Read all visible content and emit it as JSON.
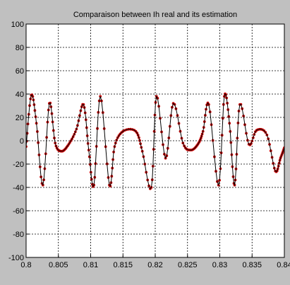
{
  "figure": {
    "background": "#c0c0c0",
    "plot_background": "#ffffff"
  },
  "chart_data": {
    "type": "line",
    "title": "Comparaison between Ih real and its estimation",
    "xlabel": "",
    "ylabel": "",
    "xlim": [
      0.8,
      0.84
    ],
    "ylim": [
      -100,
      100
    ],
    "grid": true,
    "legend": "none",
    "x_ticks": [
      "0.8",
      "0.805",
      "0.81",
      "0.815",
      "0.82",
      "0.825",
      "0.83",
      "0.835",
      "0.84"
    ],
    "y_ticks": [
      "100",
      "80",
      "60",
      "40",
      "20",
      "0",
      "-20",
      "-40",
      "-60",
      "-80",
      "-100"
    ],
    "series": [
      {
        "role": "real",
        "color": "#000000",
        "marker": "none",
        "x": [
          0.8,
          0.8008,
          0.8016,
          0.8026,
          0.8036,
          0.8045,
          0.8055,
          0.8066,
          0.8078,
          0.8089,
          0.8097,
          0.8105,
          0.8115,
          0.8129,
          0.8137,
          0.815,
          0.817,
          0.818,
          0.8194,
          0.8202,
          0.8216,
          0.8228,
          0.8243,
          0.8255,
          0.8266,
          0.8274,
          0.8283,
          0.8298,
          0.8307,
          0.8315,
          0.8323,
          0.8331,
          0.8345,
          0.8357,
          0.8373,
          0.8386,
          0.8394,
          0.84
        ],
        "y": [
          -5,
          39,
          15,
          -38,
          32,
          -2,
          -9,
          -3,
          10,
          31,
          -8,
          -38,
          38,
          -38,
          -5,
          8,
          8,
          -9,
          -40,
          38,
          -15,
          32,
          -2,
          -8,
          -3,
          8,
          31,
          -38,
          38,
          15,
          -38,
          31,
          -3,
          9,
          5,
          -26,
          -15,
          -6
        ]
      },
      {
        "role": "estimation",
        "color": "#cc0000",
        "marker": "dot",
        "x": [
          0.8,
          0.8008,
          0.8016,
          0.8026,
          0.8036,
          0.8045,
          0.8055,
          0.8066,
          0.8078,
          0.8089,
          0.8097,
          0.8105,
          0.8115,
          0.8129,
          0.8137,
          0.815,
          0.817,
          0.818,
          0.8194,
          0.8202,
          0.8216,
          0.8228,
          0.8243,
          0.8255,
          0.8266,
          0.8274,
          0.8283,
          0.8298,
          0.8307,
          0.8315,
          0.8323,
          0.8331,
          0.8345,
          0.8357,
          0.8373,
          0.8386,
          0.8394,
          0.84
        ],
        "y": [
          -5,
          39,
          15,
          -38,
          32,
          -2,
          -9,
          -3,
          10,
          31,
          -8,
          -38,
          38,
          -38,
          -5,
          8,
          8,
          -9,
          -40,
          38,
          -15,
          32,
          -2,
          -8,
          -3,
          8,
          31,
          -38,
          38,
          15,
          -38,
          31,
          -3,
          9,
          5,
          -26,
          -15,
          -6
        ]
      }
    ]
  }
}
